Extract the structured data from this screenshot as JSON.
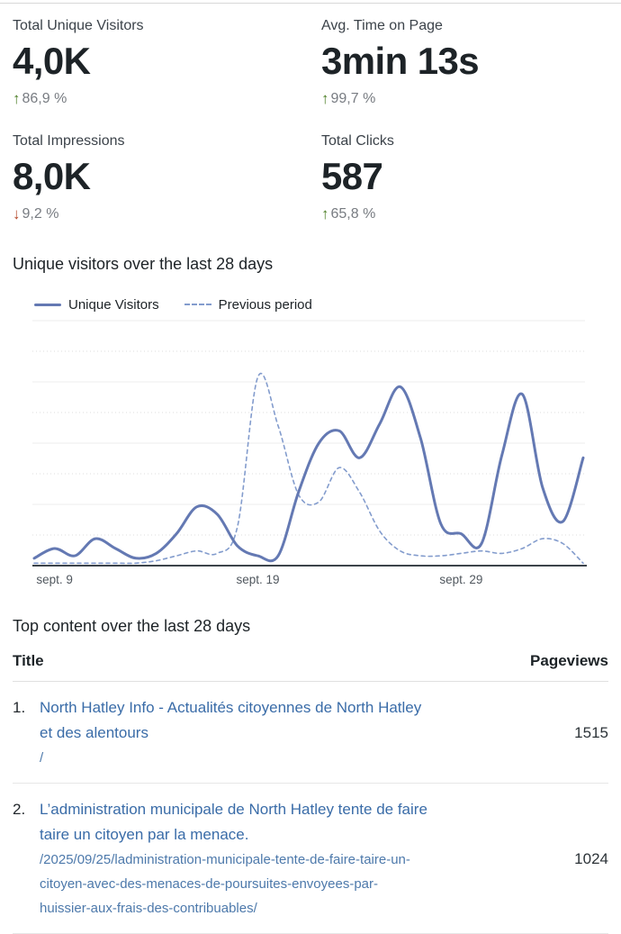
{
  "icons": {
    "up_arrow": "↑",
    "down_arrow": "↓"
  },
  "colors": {
    "accent_line": "#6479b3",
    "previous_line": "#839ccd",
    "link": "#3a6ca8",
    "positive": "#4a7d23",
    "negative": "#b44628"
  },
  "stats": [
    {
      "label": "Total Unique Visitors",
      "value": "4,0K",
      "delta": "86,9 %",
      "direction": "up"
    },
    {
      "label": "Avg. Time on Page",
      "value": "3min 13s",
      "delta": "99,7 %",
      "direction": "up"
    },
    {
      "label": "Total Impressions",
      "value": "8,0K",
      "delta": "9,2 %",
      "direction": "down"
    },
    {
      "label": "Total Clicks",
      "value": "587",
      "delta": "65,8 %",
      "direction": "up"
    }
  ],
  "chart_section": {
    "title": "Unique visitors over the last 28 days"
  },
  "chart_data": {
    "type": "line",
    "title": "Unique visitors over the last 28 days",
    "num_points": 28,
    "x_tick_labels": [
      {
        "index": 1,
        "label": "sept. 9"
      },
      {
        "index": 11,
        "label": "sept. 19"
      },
      {
        "index": 21,
        "label": "sept. 29"
      }
    ],
    "y_axis": {
      "visible": false,
      "note": "no y tick labels shown; values are relative 0-100 estimates"
    },
    "grid": "horizontal only (alternating solid and dotted lines)",
    "legend_position": "top-left above plot",
    "series": [
      {
        "name": "Unique Visitors",
        "style": "solid",
        "color": "#6479b3",
        "values": [
          3,
          7,
          4,
          11,
          7,
          3,
          5,
          13,
          24,
          21,
          8,
          4,
          4,
          30,
          50,
          55,
          44,
          58,
          73,
          52,
          17,
          13,
          9,
          45,
          70,
          32,
          18,
          44
        ]
      },
      {
        "name": "Previous period",
        "style": "dashed",
        "color": "#839ccd",
        "values": [
          1,
          1,
          1,
          1,
          1,
          1,
          2,
          4,
          6,
          5,
          16,
          77,
          57,
          29,
          26,
          40,
          30,
          14,
          6,
          4,
          4,
          5,
          6,
          5,
          7,
          11,
          9,
          1
        ]
      }
    ]
  },
  "table": {
    "section_title": "Top content over the last 28 days",
    "columns": {
      "title": "Title",
      "pageviews": "Pageviews"
    },
    "rows": [
      {
        "rank": "1.",
        "title": "North Hatley Info - Actualités citoyennes de North Hatley et des alentours",
        "path": "/",
        "pageviews": "1515"
      },
      {
        "rank": "2.",
        "title": "L’administration municipale de North Hatley tente de faire taire un citoyen par la menace.",
        "path": "/2025/09/25/ladministration-municipale-tente-de-faire-taire-un-citoyen-avec-des-menaces-de-poursuites-envoyees-par-huissier-aux-frais-des-contribuables/",
        "pageviews": "1024"
      }
    ]
  }
}
